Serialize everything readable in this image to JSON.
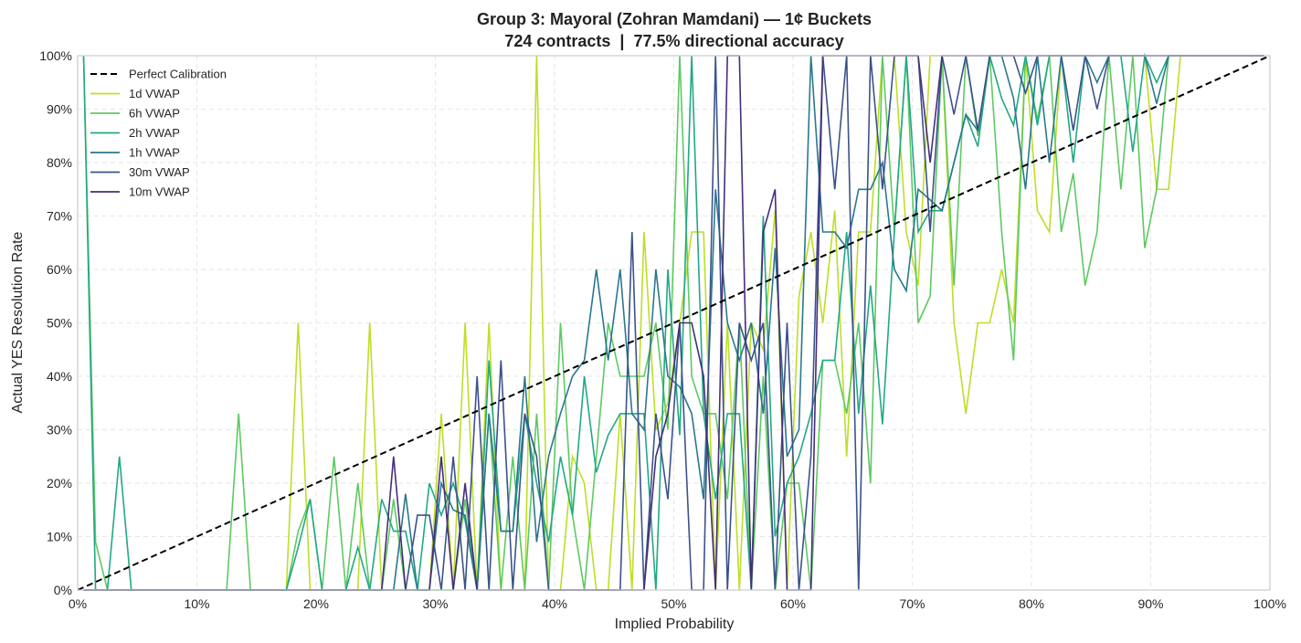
{
  "chart_data": {
    "type": "line",
    "title": "Group 3: Mayoral (Zohran Mamdani) — 1¢ Buckets",
    "subtitle": "724 contracts  |  77.5% directional accuracy",
    "xlabel": "Implied Probability",
    "ylabel": "Actual YES Resolution Rate",
    "xlim": [
      0,
      100
    ],
    "ylim": [
      0,
      100
    ],
    "x_ticks": [
      "0%",
      "10%",
      "20%",
      "30%",
      "40%",
      "50%",
      "60%",
      "70%",
      "80%",
      "90%",
      "100%"
    ],
    "y_ticks": [
      "0%",
      "10%",
      "20%",
      "30%",
      "40%",
      "50%",
      "60%",
      "70%",
      "80%",
      "90%",
      "100%"
    ],
    "grid": true,
    "legend_position": "top-left",
    "reference_line": {
      "name": "Perfect Calibration",
      "x": [
        0,
        100
      ],
      "y": [
        0,
        100
      ],
      "color": "#000000"
    },
    "x_start": 0.5,
    "x_step": 1,
    "series": [
      {
        "name": "1d VWAP",
        "color": "#bddf26",
        "values": [
          0,
          0,
          0,
          0,
          0,
          0,
          0,
          0,
          0,
          0,
          0,
          0,
          0,
          0,
          0,
          0,
          0,
          0,
          50,
          0,
          0,
          0,
          0,
          0,
          50,
          0,
          0,
          0,
          0,
          0,
          33,
          0,
          50,
          0,
          50,
          0,
          0,
          0,
          100,
          0,
          0,
          25,
          20,
          0,
          0,
          33,
          0,
          67,
          30,
          35,
          50,
          67,
          67,
          0,
          50,
          0,
          50,
          45,
          71,
          0,
          55,
          67,
          50,
          71,
          25,
          67,
          67,
          100,
          100,
          67,
          57,
          100,
          100,
          50,
          33,
          50,
          50,
          60,
          50,
          100,
          71,
          67,
          100,
          100,
          100,
          100,
          100,
          100,
          100,
          100,
          75,
          75,
          100,
          100,
          100,
          100,
          100,
          100,
          100,
          100
        ]
      },
      {
        "name": "6h VWAP",
        "color": "#5ec962",
        "values": [
          100,
          9,
          0,
          0,
          0,
          0,
          0,
          0,
          0,
          0,
          0,
          0,
          0,
          33,
          0,
          0,
          0,
          0,
          11,
          17,
          0,
          25,
          0,
          20,
          0,
          0,
          17,
          0,
          0,
          0,
          0,
          0,
          17,
          0,
          33,
          0,
          25,
          0,
          33,
          0,
          50,
          14,
          0,
          25,
          50,
          40,
          40,
          40,
          50,
          30,
          100,
          40,
          33,
          33,
          17,
          50,
          0,
          40,
          0,
          20,
          20,
          0,
          43,
          43,
          33,
          50,
          20,
          100,
          67,
          100,
          50,
          55,
          100,
          57,
          100,
          85,
          100,
          67,
          43,
          100,
          88,
          100,
          67,
          78,
          57,
          67,
          100,
          75,
          100,
          64,
          75,
          100,
          100,
          100,
          100,
          100,
          100,
          100,
          100,
          100
        ]
      },
      {
        "name": "2h VWAP",
        "color": "#22a884",
        "values": [
          100,
          0,
          0,
          25,
          0,
          0,
          0,
          0,
          0,
          0,
          0,
          0,
          0,
          0,
          0,
          0,
          0,
          0,
          8,
          17,
          0,
          0,
          0,
          8,
          0,
          17,
          11,
          11,
          0,
          20,
          14,
          20,
          13,
          0,
          43,
          11,
          11,
          33,
          20,
          9,
          25,
          14,
          40,
          22,
          29,
          33,
          33,
          33,
          0,
          60,
          29,
          100,
          33,
          17,
          33,
          33,
          0,
          70,
          10,
          20,
          25,
          33,
          43,
          43,
          67,
          33,
          57,
          31,
          67,
          100,
          67,
          71,
          71,
          80,
          89,
          83,
          100,
          92,
          87,
          100,
          87,
          100,
          100,
          80,
          100,
          100,
          100,
          100,
          82,
          100,
          95,
          100,
          100,
          100,
          100,
          100,
          100,
          100,
          100,
          100
        ]
      },
      {
        "name": "1h VWAP",
        "color": "#2a788e",
        "values": [
          0,
          0,
          0,
          0,
          0,
          0,
          0,
          0,
          0,
          0,
          0,
          0,
          0,
          0,
          0,
          0,
          0,
          0,
          0,
          0,
          0,
          0,
          0,
          0,
          0,
          0,
          0,
          18,
          0,
          0,
          20,
          15,
          14,
          0,
          33,
          11,
          11,
          40,
          9,
          25,
          33,
          40,
          43,
          60,
          43,
          60,
          33,
          30,
          60,
          40,
          38,
          33,
          17,
          75,
          50,
          43,
          50,
          33,
          64,
          25,
          30,
          100,
          67,
          67,
          64,
          75,
          75,
          80,
          60,
          56,
          75,
          73,
          71,
          80,
          89,
          86,
          100,
          100,
          92,
          75,
          100,
          80,
          100,
          100,
          100,
          95,
          100,
          100,
          100,
          100,
          91,
          100,
          100,
          100,
          100,
          100,
          100,
          100,
          100,
          100
        ]
      },
      {
        "name": "30m VWAP",
        "color": "#3b528b",
        "values": [
          0,
          0,
          0,
          0,
          0,
          0,
          0,
          0,
          0,
          0,
          0,
          0,
          0,
          0,
          0,
          0,
          0,
          0,
          0,
          0,
          0,
          0,
          0,
          0,
          0,
          0,
          0,
          0,
          14,
          14,
          0,
          25,
          0,
          40,
          0,
          43,
          0,
          33,
          25,
          0,
          0,
          0,
          0,
          0,
          0,
          0,
          67,
          0,
          33,
          17,
          50,
          0,
          0,
          100,
          0,
          50,
          43,
          50,
          0,
          50,
          0,
          25,
          100,
          75,
          100,
          0,
          100,
          75,
          100,
          100,
          100,
          67,
          100,
          89,
          100,
          86,
          100,
          100,
          100,
          93,
          100,
          100,
          100,
          86,
          100,
          90,
          100,
          100,
          100,
          100,
          100,
          100,
          100,
          100,
          100,
          100,
          100,
          100,
          100,
          100
        ]
      },
      {
        "name": "10m VWAP",
        "color": "#472d7b",
        "values": [
          0,
          0,
          0,
          0,
          0,
          0,
          0,
          0,
          0,
          0,
          0,
          0,
          0,
          0,
          0,
          0,
          0,
          0,
          0,
          0,
          0,
          0,
          0,
          0,
          0,
          0,
          25,
          0,
          0,
          0,
          25,
          0,
          20,
          0,
          0,
          0,
          0,
          0,
          0,
          0,
          0,
          0,
          0,
          0,
          0,
          0,
          0,
          0,
          25,
          33,
          50,
          50,
          40,
          0,
          100,
          100,
          0,
          67,
          75,
          0,
          0,
          0,
          100,
          100,
          100,
          100,
          100,
          100,
          100,
          100,
          100,
          80,
          100,
          100,
          100,
          100,
          100,
          100,
          100,
          100,
          100,
          100,
          100,
          100,
          100,
          100,
          100,
          100,
          100,
          100,
          100,
          100,
          100,
          100,
          100,
          100,
          100,
          100,
          100,
          100
        ]
      }
    ]
  }
}
